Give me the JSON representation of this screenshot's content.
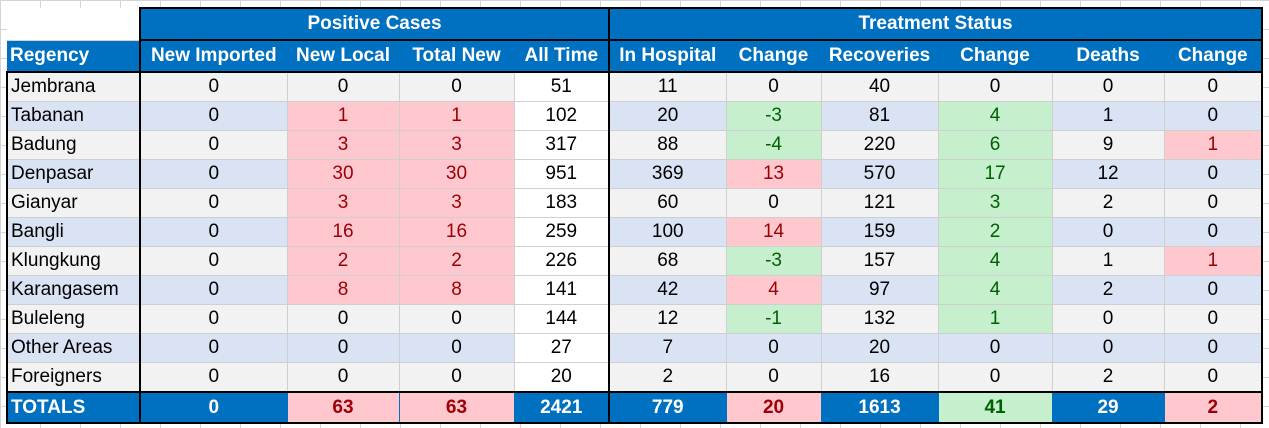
{
  "groups": {
    "positive": "Positive Cases",
    "treatment": "Treatment Status"
  },
  "columns": [
    "Regency",
    "New Imported",
    "New Local",
    "Total New",
    "All Time",
    "In Hospital",
    "Change",
    "Recoveries",
    "Change",
    "Deaths",
    "Change"
  ],
  "rows": [
    [
      "Jembrana",
      "0",
      "0",
      "0",
      "51",
      "11",
      "0",
      "40",
      "0",
      "0",
      "0"
    ],
    [
      "Tabanan",
      "0",
      "1",
      "1",
      "102",
      "20",
      "-3",
      "81",
      "4",
      "1",
      "0"
    ],
    [
      "Badung",
      "0",
      "3",
      "3",
      "317",
      "88",
      "-4",
      "220",
      "6",
      "9",
      "1"
    ],
    [
      "Denpasar",
      "0",
      "30",
      "30",
      "951",
      "369",
      "13",
      "570",
      "17",
      "12",
      "0"
    ],
    [
      "Gianyar",
      "0",
      "3",
      "3",
      "183",
      "60",
      "0",
      "121",
      "3",
      "2",
      "0"
    ],
    [
      "Bangli",
      "0",
      "16",
      "16",
      "259",
      "100",
      "14",
      "159",
      "2",
      "0",
      "0"
    ],
    [
      "Klungkung",
      "0",
      "2",
      "2",
      "226",
      "68",
      "-3",
      "157",
      "4",
      "1",
      "1"
    ],
    [
      "Karangasem",
      "0",
      "8",
      "8",
      "141",
      "42",
      "4",
      "97",
      "4",
      "2",
      "0"
    ],
    [
      "Buleleng",
      "0",
      "0",
      "0",
      "144",
      "12",
      "-1",
      "132",
      "1",
      "0",
      "0"
    ],
    [
      "Other Areas",
      "0",
      "0",
      "0",
      "27",
      "7",
      "0",
      "20",
      "0",
      "0",
      "0"
    ],
    [
      "Foreigners",
      "0",
      "0",
      "0",
      "20",
      "2",
      "0",
      "16",
      "0",
      "2",
      "0"
    ]
  ],
  "totals": [
    "TOTALS",
    "0",
    "63",
    "63",
    "2421",
    "779",
    "20",
    "1613",
    "41",
    "29",
    "2"
  ],
  "colors": {
    "header_blue": "#0070c0",
    "bad_fill": "#ffc7ce",
    "bad_text": "#9c0006",
    "good_fill": "#c6efce",
    "good_text": "#006100",
    "band_a": "#f2f2f2",
    "band_b": "#dae3f3"
  }
}
